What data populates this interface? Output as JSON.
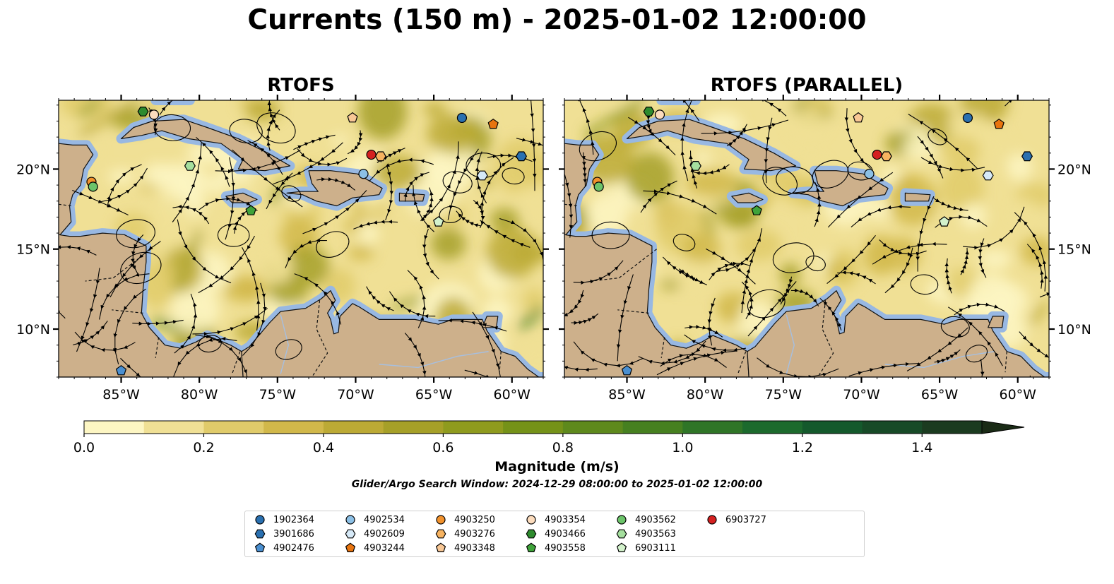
{
  "title": "Currents (150 m) - 2025-01-02 12:00:00",
  "panels": [
    {
      "title": "RTOFS",
      "y_axis_side": "left"
    },
    {
      "title": "RTOFS (PARALLEL)",
      "y_axis_side": "right"
    }
  ],
  "map": {
    "lon_range": [
      -89,
      -58
    ],
    "lat_range": [
      7,
      24.3
    ],
    "x_ticks": [
      {
        "lon": -85,
        "label": "85°W"
      },
      {
        "lon": -80,
        "label": "80°W"
      },
      {
        "lon": -75,
        "label": "75°W"
      },
      {
        "lon": -70,
        "label": "70°W"
      },
      {
        "lon": -65,
        "label": "65°W"
      },
      {
        "lon": -60,
        "label": "60°W"
      }
    ],
    "y_ticks": [
      {
        "lat": 10,
        "label": "10°N"
      },
      {
        "lat": 15,
        "label": "15°N"
      },
      {
        "lat": 20,
        "label": "20°N"
      }
    ],
    "colors": {
      "land": "#cdb08b",
      "shallow": "#98b8e2",
      "river": "#a6bfe0"
    }
  },
  "colorbar": {
    "label": "Magnitude (m/s)",
    "min": 0,
    "max": 1.6,
    "step": 0.1,
    "extend": "max",
    "ticks": [
      {
        "value": 0.0,
        "label": "0.0"
      },
      {
        "value": 0.2,
        "label": "0.2"
      },
      {
        "value": 0.4,
        "label": "0.4"
      },
      {
        "value": 0.6,
        "label": "0.6"
      },
      {
        "value": 0.8,
        "label": "0.8"
      },
      {
        "value": 1.0,
        "label": "1.0"
      },
      {
        "value": 1.2,
        "label": "1.2"
      },
      {
        "value": 1.4,
        "label": "1.4"
      }
    ],
    "colors": [
      "#fdf6c3",
      "#f0e095",
      "#e0cb6a",
      "#d1b84a",
      "#bcaa35",
      "#a6a028",
      "#8f9b1e",
      "#759218",
      "#5e891c",
      "#468020",
      "#2f7527",
      "#1c6a2d",
      "#14592c",
      "#174a27",
      "#1b3b20",
      "#1a2b16"
    ]
  },
  "search_window": "Glider/Argo Search Window: 2024-12-29 08:00:00 to 2025-01-02 12:00:00",
  "legend": {
    "columns": 7,
    "items": [
      {
        "label": "1902364",
        "marker": "circle",
        "color": "#2a70b0"
      },
      {
        "label": "3901686",
        "marker": "hexagon",
        "color": "#2a70b0"
      },
      {
        "label": "4902476",
        "marker": "pentagon",
        "color": "#4a8fd0"
      },
      {
        "label": "4902534",
        "marker": "circle",
        "color": "#8cc0e6"
      },
      {
        "label": "4902609",
        "marker": "hexagon",
        "color": "#d6e9f7"
      },
      {
        "label": "4903244",
        "marker": "pentagon",
        "color": "#e8740f"
      },
      {
        "label": "4903250",
        "marker": "circle",
        "color": "#f2922c"
      },
      {
        "label": "4903276",
        "marker": "hexagon",
        "color": "#f7b360"
      },
      {
        "label": "4903348",
        "marker": "pentagon",
        "color": "#f8c795"
      },
      {
        "label": "4903354",
        "marker": "circle",
        "color": "#fcdcbd"
      },
      {
        "label": "4903466",
        "marker": "hexagon",
        "color": "#2e8b2e"
      },
      {
        "label": "4903558",
        "marker": "pentagon",
        "color": "#3fa33a"
      },
      {
        "label": "4903562",
        "marker": "circle",
        "color": "#6cc46a"
      },
      {
        "label": "4903563",
        "marker": "hexagon",
        "color": "#a5df9e"
      },
      {
        "label": "6903111",
        "marker": "pentagon",
        "color": "#d3f2cc"
      },
      {
        "label": "6903727",
        "marker": "circle",
        "color": "#d42020"
      }
    ]
  },
  "floats": [
    {
      "id": "1902364",
      "lon": -63.2,
      "lat": 23.2
    },
    {
      "id": "3901686",
      "lon": -59.4,
      "lat": 20.8
    },
    {
      "id": "4902476",
      "lon": -85.0,
      "lat": 7.4
    },
    {
      "id": "4902534",
      "lon": -69.5,
      "lat": 19.7
    },
    {
      "id": "4902609",
      "lon": -61.9,
      "lat": 19.6
    },
    {
      "id": "4903244",
      "lon": -61.2,
      "lat": 22.8
    },
    {
      "id": "4903250",
      "lon": -86.9,
      "lat": 19.2
    },
    {
      "id": "4903276",
      "lon": -68.4,
      "lat": 20.8
    },
    {
      "id": "4903348",
      "lon": -70.2,
      "lat": 23.2
    },
    {
      "id": "4903354",
      "lon": -82.9,
      "lat": 23.4
    },
    {
      "id": "4903466",
      "lon": -83.6,
      "lat": 23.6
    },
    {
      "id": "4903558",
      "lon": -76.7,
      "lat": 17.4
    },
    {
      "id": "4903562",
      "lon": -86.8,
      "lat": 18.9
    },
    {
      "id": "4903563",
      "lon": -80.6,
      "lat": 20.2
    },
    {
      "id": "6903111",
      "lon": -64.7,
      "lat": 16.7
    },
    {
      "id": "6903727",
      "lon": -69.0,
      "lat": 20.9
    }
  ],
  "land_polygons": {
    "cuba": [
      [
        -85.0,
        21.9
      ],
      [
        -84.2,
        22.6
      ],
      [
        -83.0,
        23.0
      ],
      [
        -81.0,
        23.1
      ],
      [
        -79.5,
        22.6
      ],
      [
        -77.5,
        21.9
      ],
      [
        -75.6,
        21.0
      ],
      [
        -74.2,
        20.2
      ],
      [
        -75.8,
        19.9
      ],
      [
        -77.5,
        20.0
      ],
      [
        -77.2,
        20.6
      ],
      [
        -78.6,
        21.6
      ],
      [
        -80.7,
        21.9
      ],
      [
        -82.4,
        22.4
      ],
      [
        -83.7,
        22.1
      ]
    ],
    "hispaniola": [
      [
        -74.4,
        18.5
      ],
      [
        -73.4,
        18.4
      ],
      [
        -72.5,
        18.0
      ],
      [
        -71.2,
        17.7
      ],
      [
        -70.2,
        18.2
      ],
      [
        -68.5,
        18.4
      ],
      [
        -68.3,
        18.8
      ],
      [
        -69.9,
        19.7
      ],
      [
        -71.6,
        19.9
      ],
      [
        -73.0,
        19.9
      ],
      [
        -72.8,
        19.1
      ],
      [
        -72.4,
        18.6
      ],
      [
        -73.5,
        18.6
      ]
    ],
    "jamaica": [
      [
        -78.3,
        18.3
      ],
      [
        -77.2,
        18.5
      ],
      [
        -76.3,
        18.1
      ],
      [
        -76.8,
        17.9
      ],
      [
        -77.9,
        17.9
      ]
    ],
    "puerto_rico": [
      [
        -67.2,
        18.5
      ],
      [
        -65.6,
        18.4
      ],
      [
        -65.7,
        18.0
      ],
      [
        -67.2,
        18.0
      ]
    ],
    "central_america": [
      [
        -89,
        7
      ],
      [
        -89,
        15.9
      ],
      [
        -88.3,
        15.8
      ],
      [
        -87.6,
        15.8
      ],
      [
        -86.2,
        16.0
      ],
      [
        -84.8,
        15.9
      ],
      [
        -83.4,
        15.2
      ],
      [
        -83.4,
        14.2
      ],
      [
        -83.6,
        12.5
      ],
      [
        -83.7,
        11.0
      ],
      [
        -83.2,
        10.1
      ],
      [
        -82.2,
        9.0
      ],
      [
        -81.2,
        8.8
      ],
      [
        -80.2,
        9.2
      ],
      [
        -79.5,
        9.6
      ],
      [
        -78.0,
        9.0
      ],
      [
        -77.3,
        8.6
      ],
      [
        -77.2,
        7.0
      ]
    ],
    "south_america": [
      [
        -77.2,
        7.0
      ],
      [
        -77.3,
        8.6
      ],
      [
        -76.8,
        8.9
      ],
      [
        -75.5,
        10.4
      ],
      [
        -74.8,
        11.1
      ],
      [
        -73.2,
        11.3
      ],
      [
        -72.2,
        11.9
      ],
      [
        -71.6,
        12.4
      ],
      [
        -71.3,
        11.8
      ],
      [
        -71.8,
        11.0
      ],
      [
        -71.6,
        10.6
      ],
      [
        -71.4,
        9.7
      ],
      [
        -71.1,
        9.8
      ],
      [
        -71.0,
        10.8
      ],
      [
        -70.2,
        11.6
      ],
      [
        -69.8,
        11.4
      ],
      [
        -68.5,
        10.6
      ],
      [
        -66.2,
        10.6
      ],
      [
        -64.7,
        10.3
      ],
      [
        -63.8,
        10.6
      ],
      [
        -62.6,
        10.6
      ],
      [
        -61.9,
        10.6
      ],
      [
        -61.6,
        9.9
      ],
      [
        -60.7,
        8.6
      ],
      [
        -59.8,
        8.3
      ],
      [
        -59.0,
        7.5
      ],
      [
        -58.0,
        6.8
      ],
      [
        -58,
        7
      ]
    ],
    "florida": [
      [
        -82.8,
        24.3
      ],
      [
        -80.6,
        24.3
      ],
      [
        -80.4,
        24.9
      ]
    ],
    "trinidad": [
      [
        -61.9,
        10.1
      ],
      [
        -61.0,
        10.1
      ],
      [
        -60.9,
        10.8
      ],
      [
        -61.6,
        10.8
      ]
    ],
    "yucatan": [
      [
        -89,
        21.6
      ],
      [
        -88.1,
        21.5
      ],
      [
        -87.2,
        21.5
      ],
      [
        -86.8,
        20.9
      ],
      [
        -87.4,
        20.0
      ],
      [
        -87.6,
        19.0
      ],
      [
        -88.1,
        18.4
      ],
      [
        -88.3,
        17.7
      ],
      [
        -88.2,
        16.7
      ],
      [
        -88.9,
        15.9
      ],
      [
        -89,
        15.9
      ]
    ]
  },
  "streamlines_seed": 7
}
